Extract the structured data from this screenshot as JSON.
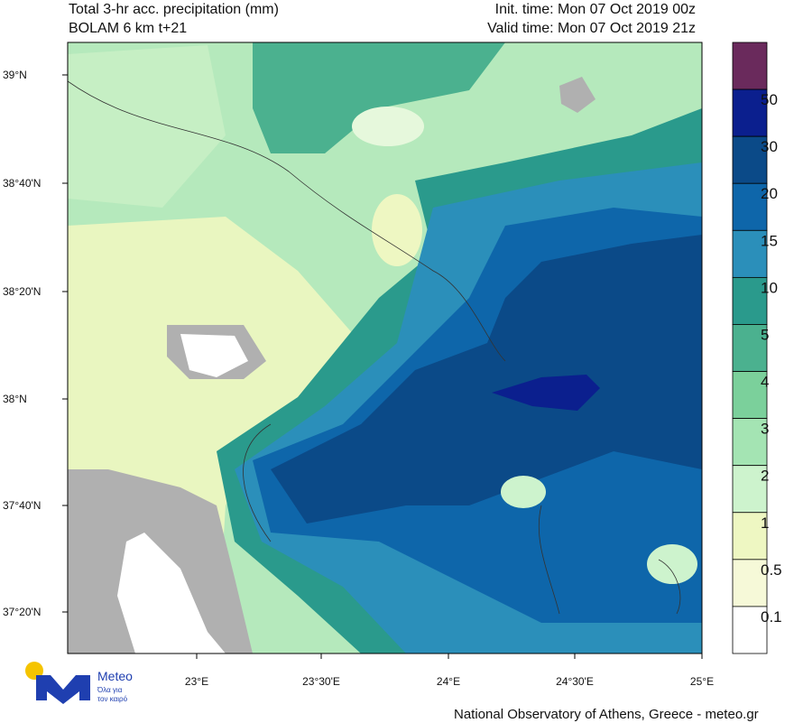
{
  "header": {
    "title": "Total 3-hr acc. precipitation (mm)",
    "model": "BOLAM 6 km t+21",
    "init_time": "Init. time: Mon 07 Oct 2019 00z",
    "valid_time": "Valid time: Mon 07 Oct 2019 21z"
  },
  "map": {
    "lat_labels": [
      "39°N",
      "38°40'N",
      "38°20'N",
      "38°N",
      "37°40'N",
      "37°20'N"
    ],
    "lon_labels": [
      "23°E",
      "23°30'E",
      "24°E",
      "24°30'E",
      "25°E"
    ]
  },
  "colorbar": {
    "levels": [
      50,
      30,
      20,
      15,
      10,
      5,
      4,
      3,
      2,
      1,
      0.5,
      0.1
    ],
    "colors": [
      "#6a2a5c",
      "#0b1f8e",
      "#0b4a88",
      "#0e66aa",
      "#2b8fba",
      "#2a9a8c",
      "#4bb18f",
      "#7bd09b",
      "#a4e4b3",
      "#cdf3cd",
      "#eef7c2",
      "#f6f9d8",
      "#ffffff"
    ]
  },
  "logo": {
    "name": "Meteo",
    "tagline_1": "Όλα για",
    "tagline_2": "τον καιρό"
  },
  "footer": "National Observatory of Athens, Greece - meteo.gr"
}
